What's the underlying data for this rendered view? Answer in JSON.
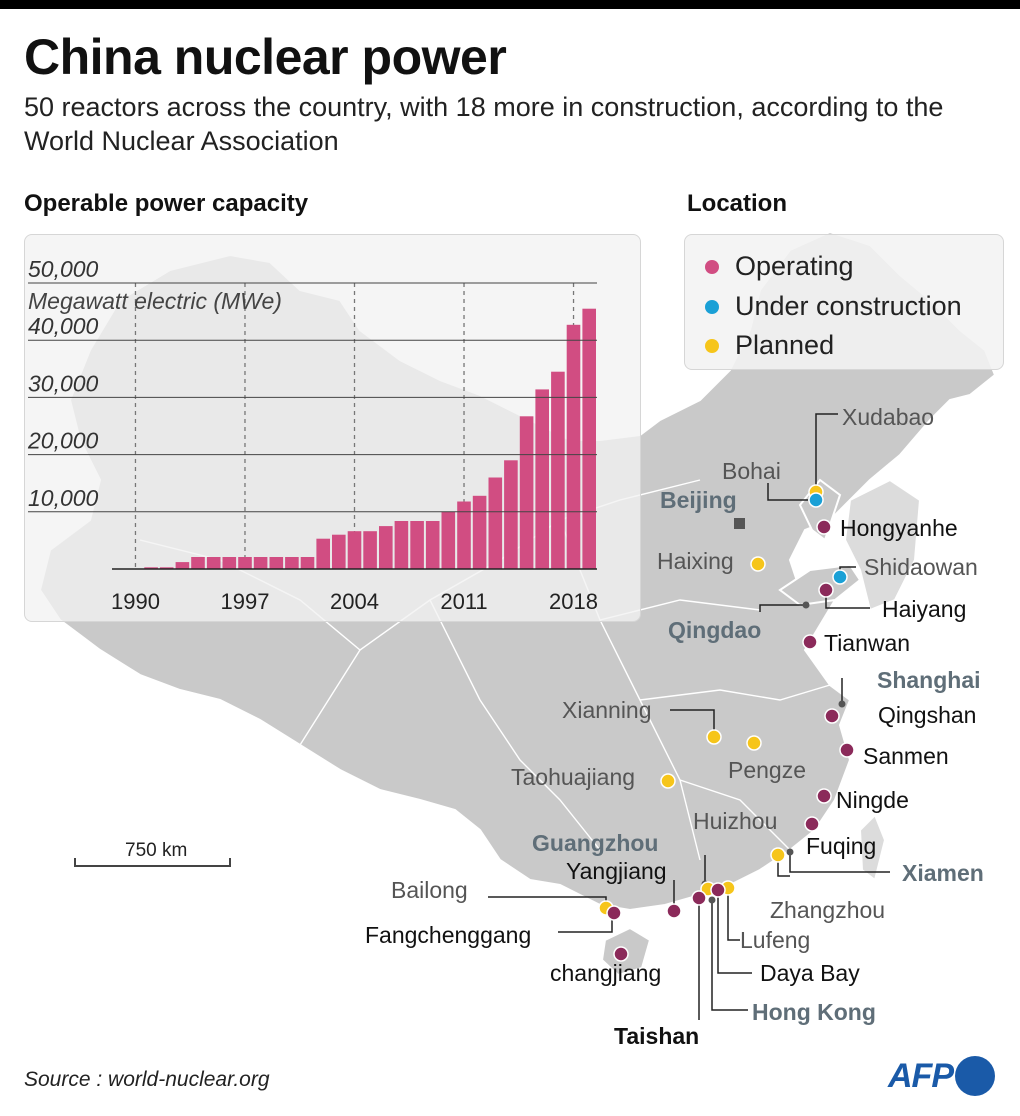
{
  "header": {
    "title": "China nuclear power",
    "subtitle": "50 reactors across the country, with 18 more in construction, according to the World Nuclear Association"
  },
  "sections": {
    "chart_heading": "Operable power capacity",
    "map_heading": "Location"
  },
  "colors": {
    "operating": "#d14d82",
    "operating_marker": "#8b2a5a",
    "under_construction": "#1aa0d6",
    "planned": "#f6c51a",
    "land": "#c9c9c9",
    "city_label": "#5f6e78"
  },
  "legend": {
    "operating": "Operating",
    "under_construction": "Under construction",
    "planned": "Planned"
  },
  "chart_data": {
    "type": "bar",
    "ylabel": "Megawatt electric (MWe)",
    "ylim": [
      0,
      50000
    ],
    "yticks": [
      "10,000",
      "20,000",
      "30,000",
      "40,000",
      "50,000"
    ],
    "ytick_values": [
      10000,
      20000,
      30000,
      40000,
      50000
    ],
    "xticks": [
      "1990",
      "1997",
      "2004",
      "2011",
      "2018"
    ],
    "xtick_years": [
      1990,
      1997,
      2004,
      2011,
      2018
    ],
    "gridlines": "vertical dashed",
    "years": [
      1989,
      1990,
      1991,
      1992,
      1993,
      1994,
      1995,
      1996,
      1997,
      1998,
      1999,
      2000,
      2001,
      2002,
      2003,
      2004,
      2005,
      2006,
      2007,
      2008,
      2009,
      2010,
      2011,
      2012,
      2013,
      2014,
      2015,
      2016,
      2017,
      2018,
      2019
    ],
    "values": [
      0,
      0,
      300,
      300,
      1200,
      2100,
      2100,
      2100,
      2100,
      2100,
      2100,
      2100,
      2100,
      5300,
      6000,
      6600,
      6600,
      7500,
      8400,
      8400,
      8400,
      10000,
      11800,
      12800,
      16000,
      19000,
      26700,
      31400,
      34500,
      42700,
      45500
    ]
  },
  "map_data": {
    "sites": [
      {
        "name": "Xudabao",
        "status": "planned"
      },
      {
        "name": "Bohai",
        "status": "under_construction"
      },
      {
        "name": "Hongyanhe",
        "status": "operating"
      },
      {
        "name": "Haixing",
        "status": "planned"
      },
      {
        "name": "Shidaowan",
        "status": "under_construction"
      },
      {
        "name": "Haiyang",
        "status": "operating"
      },
      {
        "name": "Tianwan",
        "status": "operating"
      },
      {
        "name": "Qingshan",
        "status": "operating"
      },
      {
        "name": "Sanmen",
        "status": "operating"
      },
      {
        "name": "Xianning",
        "status": "planned"
      },
      {
        "name": "Pengze",
        "status": "planned"
      },
      {
        "name": "Taohuajiang",
        "status": "planned"
      },
      {
        "name": "Ningde",
        "status": "operating"
      },
      {
        "name": "Fuqing",
        "status": "operating"
      },
      {
        "name": "Zhangzhou",
        "status": "planned"
      },
      {
        "name": "Huizhou",
        "status": "planned"
      },
      {
        "name": "Yangjiang",
        "status": "operating"
      },
      {
        "name": "Lufeng",
        "status": "planned"
      },
      {
        "name": "Daya Bay",
        "status": "operating"
      },
      {
        "name": "Taishan",
        "status": "operating"
      },
      {
        "name": "Bailong",
        "status": "planned"
      },
      {
        "name": "Fangchenggang",
        "status": "operating"
      },
      {
        "name": "changjiang",
        "status": "operating"
      }
    ],
    "cities": [
      "Beijing",
      "Qingdao",
      "Shanghai",
      "Guangzhou",
      "Xiamen",
      "Hong Kong"
    ],
    "scale": "750 km"
  },
  "footer": {
    "source": "Source : world-nuclear.org",
    "logo": "AFP"
  }
}
